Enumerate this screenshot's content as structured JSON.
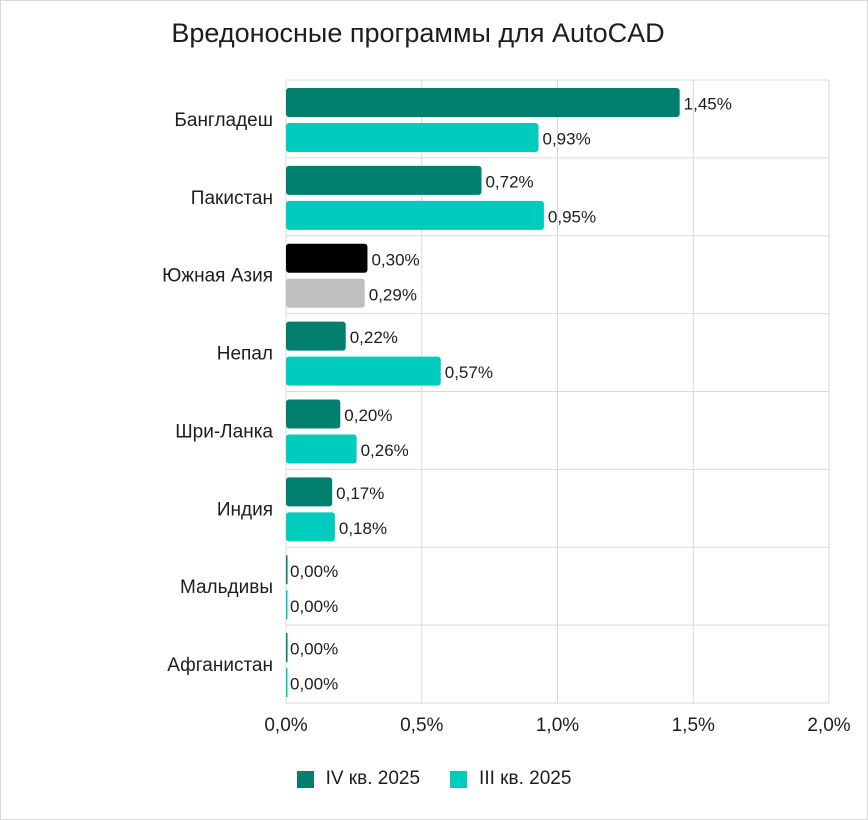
{
  "chart_data": {
    "type": "bar",
    "orientation": "horizontal",
    "title": "Вредоносные программы для AutoCAD",
    "categories": [
      "Бангладеш",
      "Пакистан",
      "Южная Азия",
      "Непал",
      "Шри-Ланка",
      "Индия",
      "Мальдивы",
      "Афганистан"
    ],
    "series": [
      {
        "name": "IV кв. 2025",
        "color": "#007f6e",
        "highlight_color": "#000000",
        "values": [
          1.45,
          0.72,
          0.3,
          0.22,
          0.2,
          0.17,
          0.0,
          0.0
        ],
        "labels": [
          "1,45%",
          "0,72%",
          "0,30%",
          "0,22%",
          "0,20%",
          "0,17%",
          "0,00%",
          "0,00%"
        ]
      },
      {
        "name": "III кв. 2025",
        "color": "#00ccbe",
        "highlight_color": "#bfbfbf",
        "values": [
          0.93,
          0.95,
          0.29,
          0.57,
          0.26,
          0.18,
          0.0,
          0.0
        ],
        "labels": [
          "0,93%",
          "0,95%",
          "0,29%",
          "0,57%",
          "0,26%",
          "0,18%",
          "0,00%",
          "0,00%"
        ]
      }
    ],
    "highlighted_category": "Южная Азия",
    "xlim": [
      0,
      2.0
    ],
    "x_ticks": [
      0,
      0.5,
      1.0,
      1.5,
      2.0
    ],
    "x_tick_labels": [
      "0,0%",
      "0,5%",
      "1,0%",
      "1,5%",
      "2,0%"
    ],
    "grid": "vertical and horizontal separators",
    "legend_position": "bottom"
  }
}
